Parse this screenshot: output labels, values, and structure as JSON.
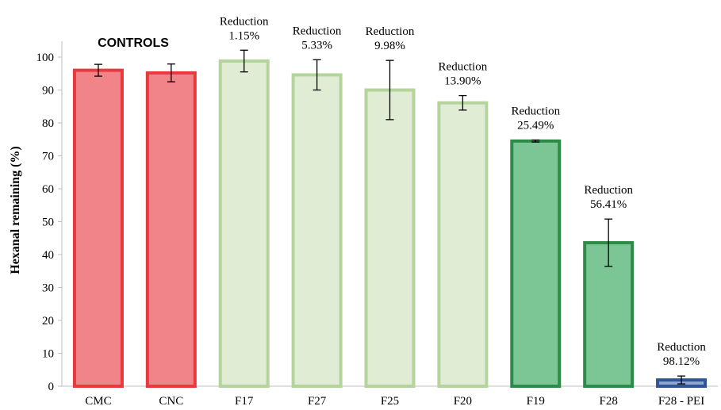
{
  "chart_data": {
    "type": "bar",
    "ylabel": "Hexanal remaining (%)",
    "ylim": [
      0,
      100
    ],
    "yticks": [
      0,
      10,
      20,
      30,
      40,
      50,
      60,
      70,
      80,
      90,
      100
    ],
    "controls_label": "CONTROLS",
    "grid": false,
    "bars": [
      {
        "category": "CMC",
        "value": 96,
        "error": 1.8,
        "fill": "#f08488",
        "stroke": "#e8393f",
        "reduction": null,
        "percent": null
      },
      {
        "category": "CNC",
        "value": 95.2,
        "error": 2.7,
        "fill": "#f08488",
        "stroke": "#e8393f",
        "reduction": null,
        "percent": null
      },
      {
        "category": "F17",
        "value": 98.8,
        "error": 3.3,
        "fill": "#e0ecd3",
        "stroke": "#b4d49c",
        "reduction": "Reduction",
        "percent": "1.15%"
      },
      {
        "category": "F27",
        "value": 94.6,
        "error": 4.6,
        "fill": "#e0ecd3",
        "stroke": "#b4d49c",
        "reduction": "Reduction",
        "percent": "5.33%"
      },
      {
        "category": "F25",
        "value": 90,
        "error": 9,
        "fill": "#e0ecd3",
        "stroke": "#b4d49c",
        "reduction": "Reduction",
        "percent": "9.98%"
      },
      {
        "category": "F20",
        "value": 86.1,
        "error": 2.2,
        "fill": "#e0ecd3",
        "stroke": "#b4d49c",
        "reduction": "Reduction",
        "percent": "13.90%"
      },
      {
        "category": "F19",
        "value": 74.5,
        "error": 0.3,
        "fill": "#7cc595",
        "stroke": "#2e8b47",
        "reduction": "Reduction",
        "percent": "25.49%"
      },
      {
        "category": "F28",
        "value": 43.6,
        "error": 7.2,
        "fill": "#7cc595",
        "stroke": "#2e8b47",
        "reduction": "Reduction",
        "percent": "56.41%"
      },
      {
        "category": "F28 - PEI",
        "value": 1.9,
        "error": 1.2,
        "fill": "#8ea7cc",
        "stroke": "#2f5597",
        "reduction": "Reduction",
        "percent": "98.12%"
      }
    ]
  }
}
